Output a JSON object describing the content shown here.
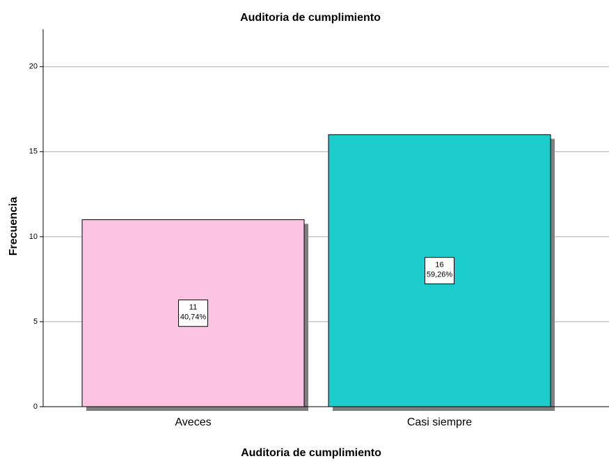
{
  "chart_data": {
    "type": "bar",
    "title": "Auditoria de cumplimiento",
    "x_label": "Auditoria de cumplimiento",
    "y_label": "Frecuencia",
    "categories": [
      "Aveces",
      "Casi siempre"
    ],
    "values": [
      11,
      16
    ],
    "percent_labels": [
      "40,74%",
      "59,26%"
    ],
    "colors": [
      "#fcc3e2",
      "#1dcdcd"
    ],
    "ylim": [
      0,
      22.2
    ],
    "yticks": [
      0,
      5,
      10,
      15,
      20
    ],
    "grid": true
  }
}
